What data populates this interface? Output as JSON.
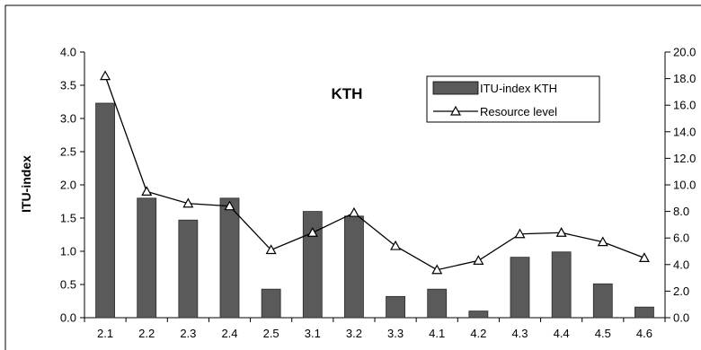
{
  "chart_data": {
    "type": "bar",
    "title": "KTH",
    "ylabel": "ITU-index",
    "y2label": "",
    "categories": [
      "2.1",
      "2.2",
      "2.3",
      "2.4",
      "2.5",
      "3.1",
      "3.2",
      "3.3",
      "4.1",
      "4.2",
      "4.3",
      "4.4",
      "4.5",
      "4.6"
    ],
    "ylim": [
      0,
      4.0
    ],
    "y2lim": [
      0,
      20.0
    ],
    "yticks": [
      "0.0",
      "0.5",
      "1.0",
      "1.5",
      "2.0",
      "2.5",
      "3.0",
      "3.5",
      "4.0"
    ],
    "y2ticks": [
      "0.0",
      "2.0",
      "4.0",
      "6.0",
      "8.0",
      "10.0",
      "12.0",
      "14.0",
      "16.0",
      "18.0",
      "20.0"
    ],
    "legend_position": "top-right",
    "series": [
      {
        "name": "ITU-index KTH",
        "type": "bar",
        "axis": "left",
        "color": "#5a5a5a",
        "values": [
          3.23,
          1.8,
          1.47,
          1.8,
          0.43,
          1.6,
          1.53,
          0.32,
          0.43,
          0.1,
          0.91,
          0.99,
          0.51,
          0.16
        ]
      },
      {
        "name": "Resource level",
        "type": "line",
        "axis": "right",
        "marker": "triangle-open",
        "color": "#000000",
        "values": [
          18.2,
          9.5,
          8.6,
          8.4,
          5.1,
          6.4,
          7.9,
          5.4,
          3.6,
          4.3,
          6.3,
          6.4,
          5.7,
          4.5
        ]
      }
    ]
  }
}
